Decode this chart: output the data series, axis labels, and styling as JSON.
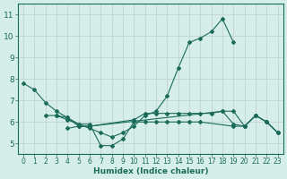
{
  "xlabel": "Humidex (Indice chaleur)",
  "xlim": [
    -0.5,
    23.5
  ],
  "ylim": [
    4.5,
    11.5
  ],
  "xticks": [
    0,
    1,
    2,
    3,
    4,
    5,
    6,
    7,
    8,
    9,
    10,
    11,
    12,
    13,
    14,
    15,
    16,
    17,
    18,
    19,
    20,
    21,
    22,
    23
  ],
  "yticks": [
    5,
    6,
    7,
    8,
    9,
    10,
    11
  ],
  "bg_color": "#d6eeea",
  "line_color": "#1a6b5a",
  "grid_color": "#c4d9d5",
  "series1_x": [
    0,
    1,
    2,
    3,
    4,
    5,
    6,
    7,
    8,
    9,
    10,
    11,
    12,
    13,
    14,
    15,
    16,
    17,
    18,
    19
  ],
  "series1_y": [
    7.8,
    7.5,
    6.9,
    6.5,
    6.2,
    5.9,
    5.7,
    5.5,
    5.3,
    5.5,
    5.8,
    6.3,
    6.5,
    7.2,
    8.5,
    9.7,
    9.9,
    10.2,
    10.8,
    9.7
  ],
  "series2_x": [
    2,
    3,
    4,
    5,
    6,
    10,
    11,
    12,
    13,
    14,
    15,
    16,
    17,
    18,
    19,
    20,
    21,
    22,
    23
  ],
  "series2_y": [
    6.3,
    6.3,
    6.2,
    5.8,
    5.8,
    6.1,
    6.4,
    6.4,
    6.4,
    6.4,
    6.4,
    6.4,
    6.4,
    6.5,
    5.9,
    5.8,
    6.3,
    6.0,
    5.5
  ],
  "series3_x": [
    3,
    4,
    5,
    6,
    7,
    8,
    9,
    10,
    11,
    12,
    13,
    14,
    15,
    16,
    19,
    20,
    21,
    22,
    23
  ],
  "series3_y": [
    6.3,
    6.1,
    5.9,
    5.9,
    4.9,
    4.9,
    5.2,
    6.0,
    6.0,
    6.0,
    6.0,
    6.0,
    6.0,
    6.0,
    5.8,
    5.8,
    6.3,
    6.0,
    5.5
  ],
  "series4_x": [
    4,
    5,
    6,
    18,
    19,
    20,
    21,
    22,
    23
  ],
  "series4_y": [
    5.7,
    5.8,
    5.8,
    6.5,
    6.5,
    5.8,
    6.3,
    6.0,
    5.5
  ]
}
